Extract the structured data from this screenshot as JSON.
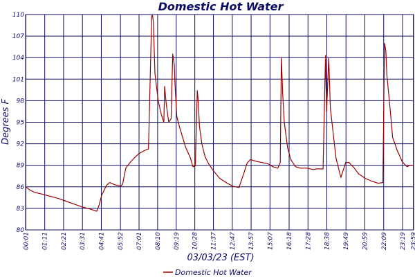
{
  "chart_data": {
    "type": "line",
    "title": "Domestic Hot Water",
    "xlabel": "03/03/23 (EST)",
    "ylabel": "Degrees F",
    "ylim": [
      80,
      110
    ],
    "yticks": [
      "80",
      "83",
      "86",
      "89",
      "92",
      "95",
      "98",
      "101",
      "104",
      "107",
      "110"
    ],
    "x_range_hours": [
      0,
      24
    ],
    "xticks": [
      {
        "label": "00:01",
        "hour": 0.0167
      },
      {
        "label": "01:11",
        "hour": 1.1833
      },
      {
        "label": "02:21",
        "hour": 2.35
      },
      {
        "label": "03:31",
        "hour": 3.5167
      },
      {
        "label": "04:41",
        "hour": 4.6833
      },
      {
        "label": "05:52",
        "hour": 5.8667
      },
      {
        "label": "07:01",
        "hour": 7.0167
      },
      {
        "label": "08:10",
        "hour": 8.1667
      },
      {
        "label": "09:19",
        "hour": 9.3167
      },
      {
        "label": "10:28",
        "hour": 10.4667
      },
      {
        "label": "11:37",
        "hour": 11.6167
      },
      {
        "label": "12:47",
        "hour": 12.7833
      },
      {
        "label": "13:57",
        "hour": 13.95
      },
      {
        "label": "15:07",
        "hour": 15.1167
      },
      {
        "label": "16:18",
        "hour": 16.3
      },
      {
        "label": "17:28",
        "hour": 17.4667
      },
      {
        "label": "18:38",
        "hour": 18.6333
      },
      {
        "label": "19:49",
        "hour": 19.8167
      },
      {
        "label": "20:59",
        "hour": 20.9833
      },
      {
        "label": "22:09",
        "hour": 22.15
      },
      {
        "label": "23:19",
        "hour": 23.3167
      },
      {
        "label": "23:59",
        "hour": 23.9833
      }
    ],
    "grid": true,
    "legend_position": "bottom-center",
    "series": [
      {
        "name": "Domestic Hot Water",
        "color": "#990000",
        "x": [
          0.0,
          0.3,
          0.6,
          1.0,
          1.5,
          2.0,
          2.5,
          3.0,
          3.5,
          4.0,
          4.4,
          4.55,
          4.7,
          5.0,
          5.2,
          5.5,
          5.9,
          6.0,
          6.2,
          6.5,
          6.8,
          7.0,
          7.3,
          7.6,
          7.8,
          7.85,
          7.9,
          8.0,
          8.2,
          8.4,
          8.55,
          8.6,
          8.7,
          8.85,
          9.0,
          9.1,
          9.2,
          9.25,
          9.35,
          9.5,
          9.7,
          9.9,
          10.2,
          10.35,
          10.5,
          10.62,
          10.68,
          10.75,
          10.9,
          11.1,
          11.3,
          11.6,
          12.0,
          12.4,
          12.8,
          13.2,
          13.5,
          13.7,
          13.9,
          14.2,
          14.6,
          15.0,
          15.3,
          15.6,
          15.75,
          15.82,
          15.9,
          16.0,
          16.2,
          16.4,
          16.7,
          17.0,
          17.4,
          17.8,
          18.0,
          18.4,
          18.55,
          18.62,
          18.75,
          18.85,
          19.0,
          19.2,
          19.5,
          19.8,
          20.0,
          20.3,
          20.6,
          21.0,
          21.4,
          21.8,
          22.1,
          22.2,
          22.28,
          22.35,
          22.5,
          22.6,
          22.7,
          23.0,
          23.3,
          23.5,
          23.6,
          23.75,
          23.85,
          23.98
        ],
        "values": [
          86.0,
          85.5,
          85.2,
          85.0,
          84.7,
          84.4,
          84.0,
          83.6,
          83.2,
          82.9,
          82.6,
          83.5,
          84.8,
          86.2,
          86.6,
          86.3,
          86.1,
          86.4,
          88.6,
          89.5,
          90.2,
          90.6,
          91.0,
          91.3,
          109.8,
          109.9,
          109.0,
          101.8,
          98.0,
          96.0,
          95.0,
          100.0,
          97.5,
          95.0,
          95.5,
          104.5,
          103.0,
          100.0,
          95.8,
          94.5,
          93.0,
          91.5,
          90.0,
          88.8,
          88.9,
          99.4,
          98.0,
          94.5,
          92.0,
          90.2,
          89.3,
          88.3,
          87.2,
          86.6,
          86.1,
          85.9,
          87.9,
          89.3,
          89.8,
          89.6,
          89.4,
          89.2,
          88.8,
          88.6,
          89.4,
          104.0,
          99.0,
          95.0,
          91.5,
          89.8,
          88.8,
          88.6,
          88.6,
          88.4,
          88.5,
          88.5,
          104.3,
          96.5,
          104.0,
          97.0,
          94.0,
          90.0,
          87.3,
          89.4,
          89.4,
          88.7,
          87.8,
          87.2,
          86.8,
          86.5,
          86.6,
          106.0,
          105.0,
          101.5,
          98.0,
          95.5,
          92.9,
          91.0,
          89.5,
          89.0,
          88.8,
          89.0,
          89.0,
          89.0
        ]
      }
    ]
  }
}
